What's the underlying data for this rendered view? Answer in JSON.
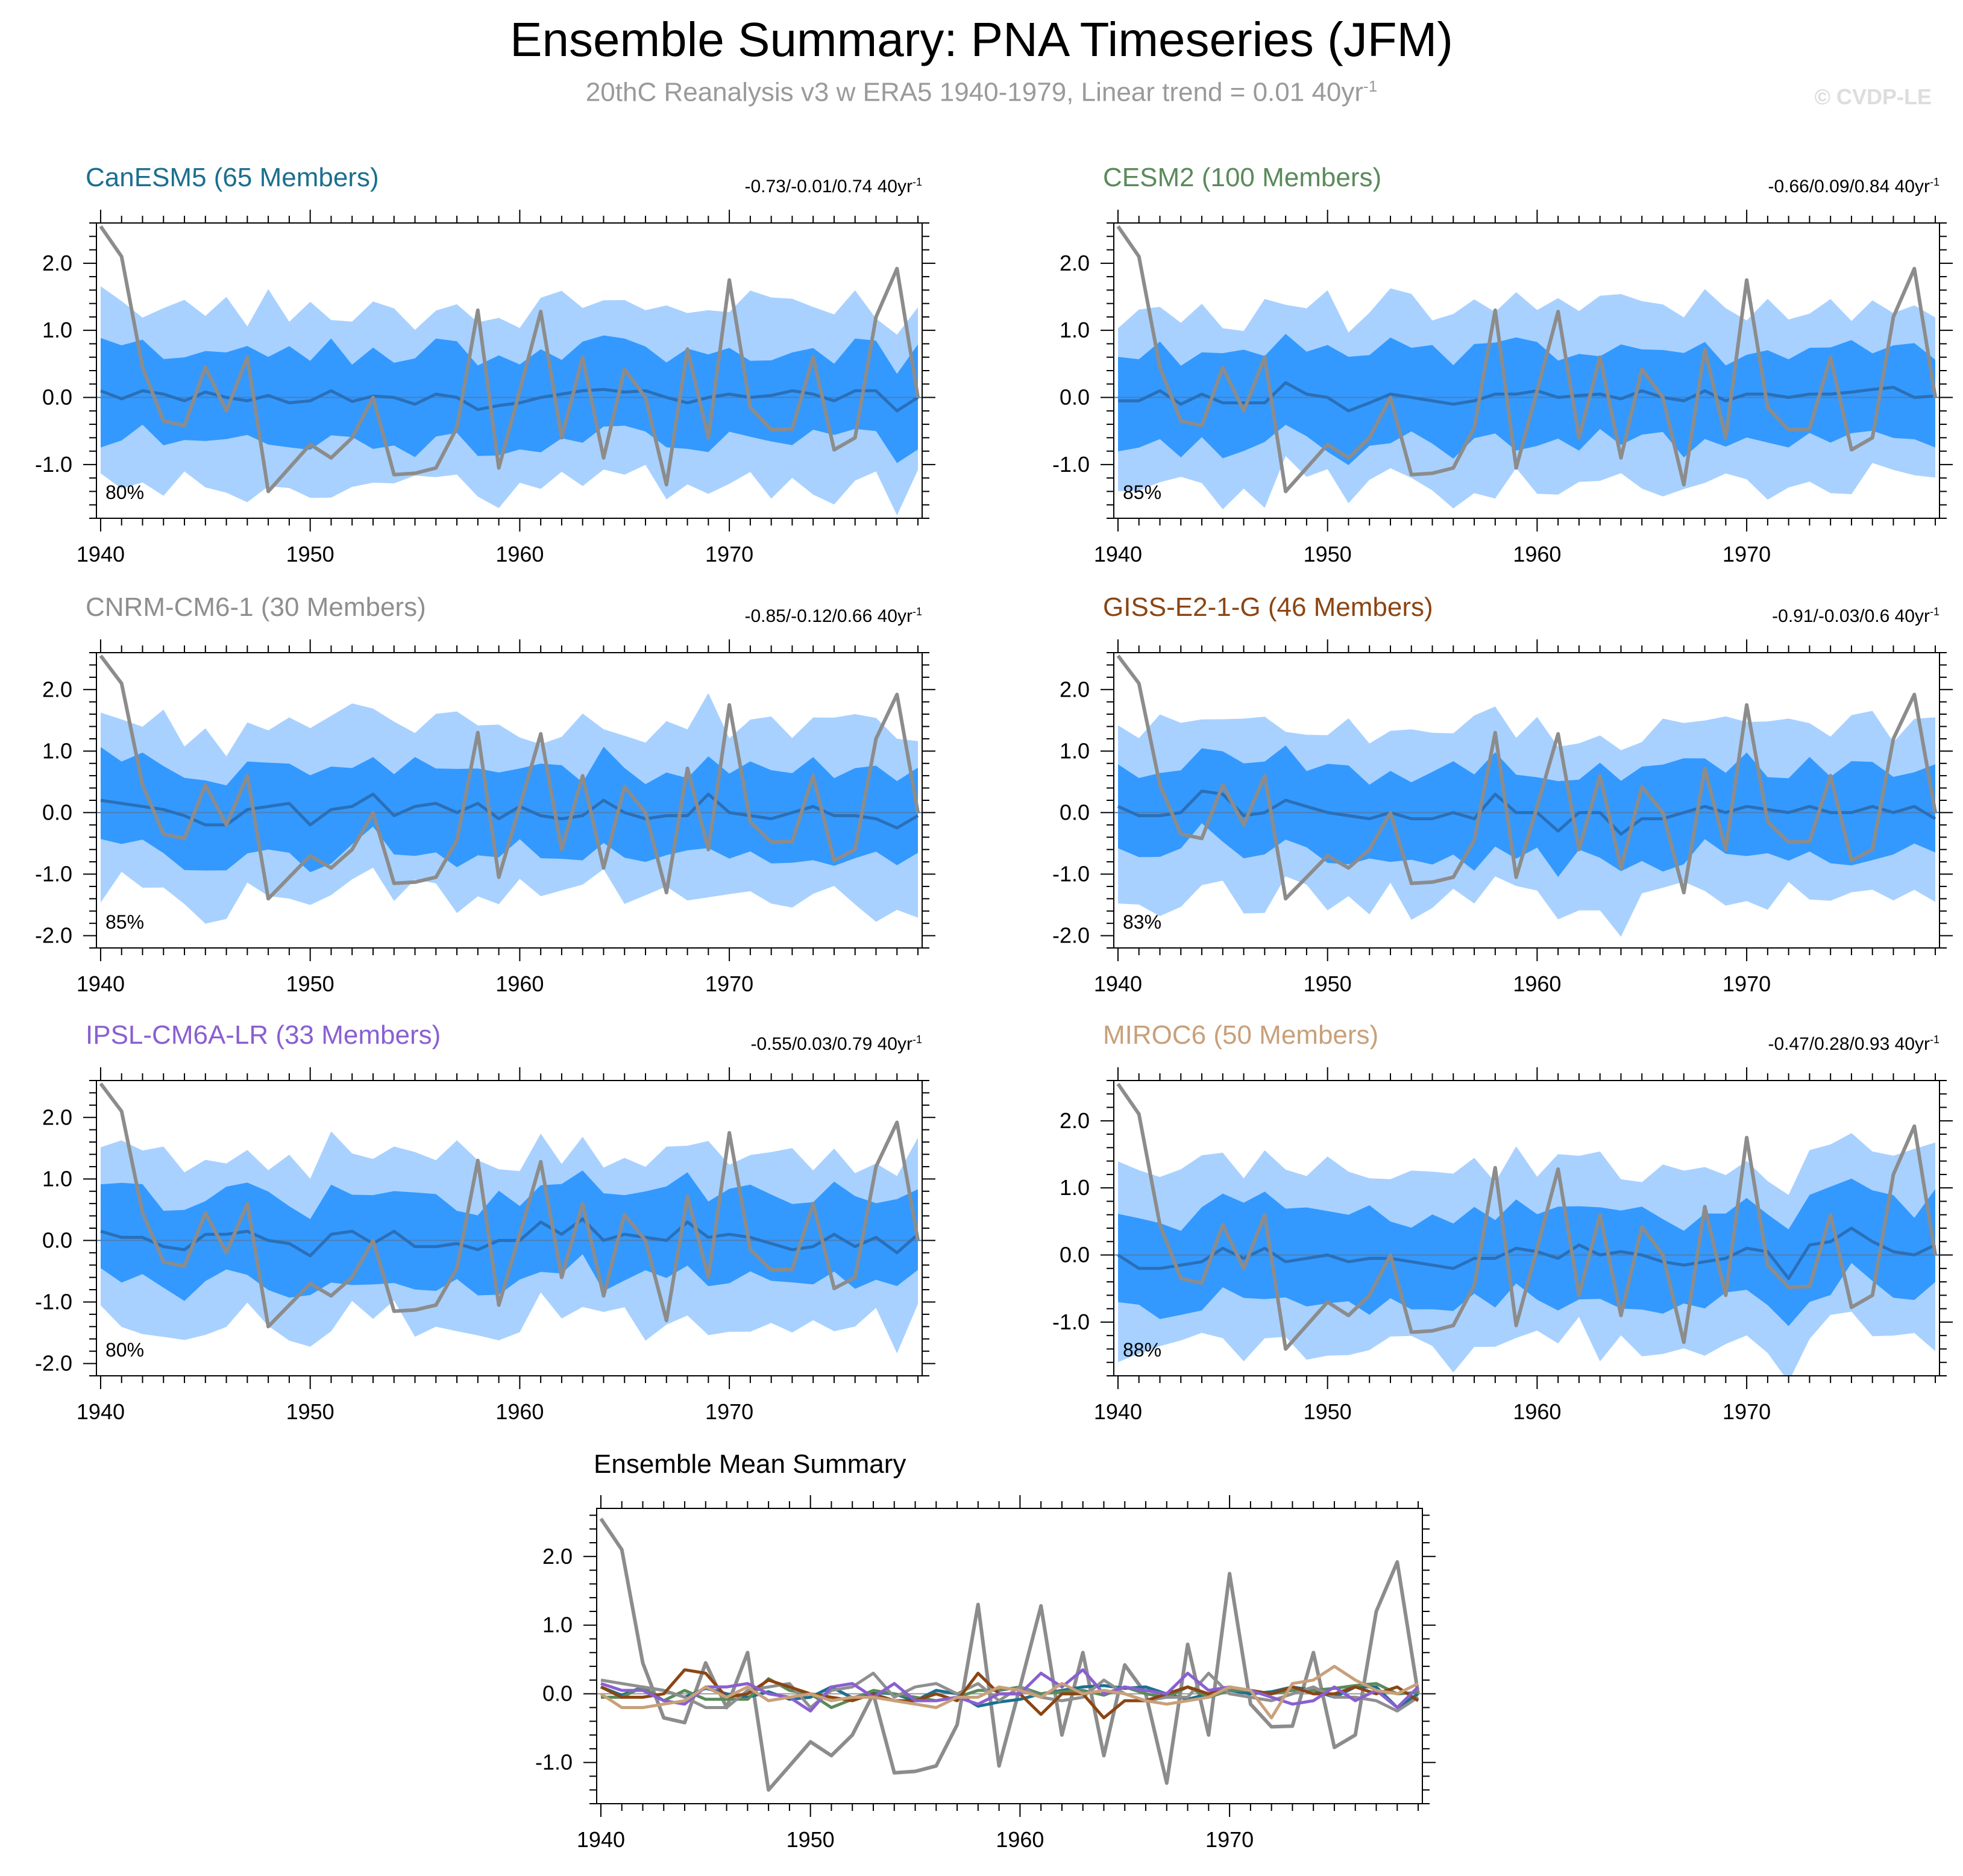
{
  "title": "Ensemble Summary: PNA Timeseries (JFM)",
  "subtitle": "20thC Reanalysis v3 w ERA5 1940-1979, Linear trend = 0.01 40yr",
  "subtitle_sup": "-1",
  "watermark": "© CVDP-LE",
  "colors": {
    "band_outer": "#a8d1ff",
    "band_inner": "#3399ff",
    "ens_mean_line": "#2a6fb8",
    "obs_line": "#8c8c8c"
  },
  "chart_data": {
    "type": "line",
    "x": [
      1940,
      1941,
      1942,
      1943,
      1944,
      1945,
      1946,
      1947,
      1948,
      1949,
      1950,
      1951,
      1952,
      1953,
      1954,
      1955,
      1956,
      1957,
      1958,
      1959,
      1960,
      1961,
      1962,
      1963,
      1964,
      1965,
      1966,
      1967,
      1968,
      1969,
      1970,
      1971,
      1972,
      1973,
      1974,
      1975,
      1976,
      1977,
      1978,
      1979
    ],
    "xticks": [
      1940,
      1950,
      1960,
      1970
    ],
    "xtick_labels": [
      "1940",
      "1950",
      "1960",
      "1970"
    ],
    "observations": {
      "name": "20thC Reanalysis v3 w ERA5",
      "values": [
        2.55,
        2.1,
        0.45,
        -0.35,
        -0.42,
        0.45,
        -0.2,
        0.6,
        -1.4,
        -1.05,
        -0.7,
        -0.9,
        -0.6,
        0.0,
        -1.15,
        -1.13,
        -1.05,
        -0.45,
        1.3,
        -1.05,
        0.1,
        1.28,
        -0.6,
        0.6,
        -0.9,
        0.42,
        0.0,
        -1.3,
        0.72,
        -0.6,
        1.75,
        -0.15,
        -0.48,
        -0.47,
        0.6,
        -0.78,
        -0.6,
        1.2,
        1.92,
        0.0
      ]
    },
    "panels": [
      {
        "name": "CanESM5",
        "title": "CanESM5 (65 Members)",
        "title_color": "#1b6f8f",
        "stat": "-0.73/-0.01/0.74 40yr",
        "stat_sup": "-1",
        "pct_label": "80%",
        "ylim": [
          -1.8,
          2.6
        ],
        "yticks": [
          -1.0,
          0.0,
          1.0,
          2.0
        ],
        "ytick_labels": [
          "-1.0",
          "0.0",
          "1.0",
          "2.0"
        ],
        "ensemble_mean": [
          0.1,
          -0.02,
          0.1,
          0.05,
          -0.05,
          0.08,
          0.0,
          -0.05,
          0.03,
          -0.08,
          -0.05,
          0.1,
          -0.06,
          0.02,
          0.0,
          -0.1,
          0.05,
          0.0,
          -0.18,
          -0.12,
          -0.08,
          0.0,
          0.05,
          0.1,
          0.12,
          0.08,
          0.1,
          0.0,
          -0.08,
          0.0,
          0.05,
          0.0,
          0.03,
          0.1,
          0.05,
          -0.05,
          0.1,
          0.1,
          -0.2,
          0.0
        ],
        "spread": 1.0,
        "pattern_seed": 1
      },
      {
        "name": "CESM2",
        "title": "CESM2 (100 Members)",
        "title_color": "#5b8a5b",
        "stat": "-0.66/0.09/0.84 40yr",
        "stat_sup": "-1",
        "pct_label": "85%",
        "ylim": [
          -1.8,
          2.6
        ],
        "yticks": [
          -1.0,
          0.0,
          1.0,
          2.0
        ],
        "ytick_labels": [
          "-1.0",
          "0.0",
          "1.0",
          "2.0"
        ],
        "ensemble_mean": [
          -0.05,
          -0.05,
          0.1,
          -0.1,
          0.05,
          -0.08,
          -0.08,
          -0.08,
          0.22,
          0.05,
          0.0,
          -0.2,
          -0.08,
          0.05,
          0.0,
          -0.05,
          -0.1,
          -0.05,
          0.05,
          0.05,
          0.1,
          0.0,
          0.03,
          0.05,
          -0.02,
          0.1,
          0.0,
          -0.05,
          0.1,
          -0.05,
          0.05,
          0.05,
          0.0,
          0.05,
          0.05,
          0.08,
          0.12,
          0.15,
          0.0,
          0.02
        ],
        "spread": 1.0,
        "pattern_seed": 2
      },
      {
        "name": "CNRM-CM6-1",
        "title": "CNRM-CM6-1 (30 Members)",
        "title_color": "#8f8f8f",
        "stat": "-0.85/-0.12/0.66 40yr",
        "stat_sup": "-1",
        "pct_label": "85%",
        "ylim": [
          -2.2,
          2.6
        ],
        "yticks": [
          -2.0,
          -1.0,
          0.0,
          1.0,
          2.0
        ],
        "ytick_labels": [
          "-2.0",
          "-1.0",
          "0.0",
          "1.0",
          "2.0"
        ],
        "ensemble_mean": [
          0.2,
          0.15,
          0.1,
          0.05,
          -0.05,
          -0.2,
          -0.2,
          0.05,
          0.1,
          0.15,
          -0.2,
          0.05,
          0.1,
          0.3,
          -0.05,
          0.1,
          0.15,
          0.0,
          0.15,
          -0.1,
          0.1,
          -0.05,
          -0.1,
          -0.05,
          0.2,
          0.0,
          -0.1,
          -0.05,
          -0.05,
          0.3,
          0.0,
          -0.05,
          -0.1,
          0.0,
          0.1,
          -0.05,
          -0.05,
          -0.1,
          -0.25,
          -0.05
        ],
        "spread": 1.05,
        "pattern_seed": 3
      },
      {
        "name": "GISS-E2-1-G",
        "title": "GISS-E2-1-G (46 Members)",
        "title_color": "#8b4513",
        "stat": "-0.91/-0.03/0.6 40yr",
        "stat_sup": "-1",
        "pct_label": "83%",
        "ylim": [
          -2.2,
          2.6
        ],
        "yticks": [
          -2.0,
          -1.0,
          0.0,
          1.0,
          2.0
        ],
        "ytick_labels": [
          "-2.0",
          "-1.0",
          "0.0",
          "1.0",
          "2.0"
        ],
        "ensemble_mean": [
          0.1,
          -0.05,
          -0.05,
          0.0,
          0.35,
          0.3,
          -0.05,
          0.0,
          0.2,
          0.1,
          0.0,
          -0.05,
          -0.1,
          0.0,
          -0.1,
          -0.1,
          0.0,
          -0.1,
          0.3,
          0.0,
          0.0,
          -0.3,
          0.0,
          0.0,
          -0.35,
          -0.1,
          -0.1,
          0.0,
          0.1,
          0.0,
          0.1,
          0.05,
          0.0,
          0.1,
          0.0,
          0.0,
          0.1,
          0.0,
          0.1,
          -0.1
        ],
        "spread": 1.05,
        "pattern_seed": 4
      },
      {
        "name": "IPSL-CM6A-LR",
        "title": "IPSL-CM6A-LR (33 Members)",
        "title_color": "#8a5fd1",
        "stat": "-0.55/0.03/0.79 40yr",
        "stat_sup": "-1",
        "pct_label": "80%",
        "ylim": [
          -2.2,
          2.6
        ],
        "yticks": [
          -2.0,
          -1.0,
          0.0,
          1.0,
          2.0
        ],
        "ytick_labels": [
          "-2.0",
          "-1.0",
          "0.0",
          "1.0",
          "2.0"
        ],
        "ensemble_mean": [
          0.15,
          0.05,
          0.05,
          -0.1,
          -0.15,
          0.1,
          0.1,
          0.15,
          0.0,
          -0.05,
          -0.25,
          0.1,
          0.15,
          -0.05,
          0.15,
          -0.1,
          -0.1,
          -0.05,
          -0.15,
          0.0,
          0.0,
          0.3,
          0.1,
          0.35,
          0.0,
          0.1,
          0.05,
          0.0,
          0.3,
          0.05,
          0.1,
          0.05,
          -0.05,
          -0.15,
          -0.1,
          0.1,
          -0.1,
          0.05,
          -0.2,
          0.1
        ],
        "spread": 1.05,
        "pattern_seed": 5
      },
      {
        "name": "MIROC6",
        "title": "MIROC6 (50 Members)",
        "title_color": "#c8a07a",
        "stat": "-0.47/0.28/0.93 40yr",
        "stat_sup": "-1",
        "pct_label": "88%",
        "ylim": [
          -1.8,
          2.6
        ],
        "yticks": [
          -1.0,
          0.0,
          1.0,
          2.0
        ],
        "ytick_labels": [
          "-1.0",
          "0.0",
          "1.0",
          "2.0"
        ],
        "ensemble_mean": [
          0.0,
          -0.2,
          -0.2,
          -0.15,
          -0.1,
          0.1,
          -0.05,
          0.1,
          -0.1,
          -0.05,
          0.0,
          -0.1,
          -0.05,
          -0.05,
          -0.1,
          -0.15,
          -0.2,
          -0.05,
          -0.05,
          0.1,
          0.05,
          -0.05,
          0.15,
          0.0,
          0.05,
          0.0,
          -0.1,
          -0.15,
          -0.1,
          -0.05,
          0.1,
          0.05,
          -0.35,
          0.15,
          0.2,
          0.4,
          0.2,
          0.05,
          0.0,
          0.15
        ],
        "spread": 1.0,
        "pattern_seed": 6
      }
    ],
    "mean_summary": {
      "title": "Ensemble Mean Summary",
      "ylim": [
        -1.6,
        2.7
      ],
      "yticks": [
        -1.0,
        0.0,
        1.0,
        2.0
      ],
      "ytick_labels": [
        "-1.0",
        "0.0",
        "1.0",
        "2.0"
      ]
    }
  }
}
